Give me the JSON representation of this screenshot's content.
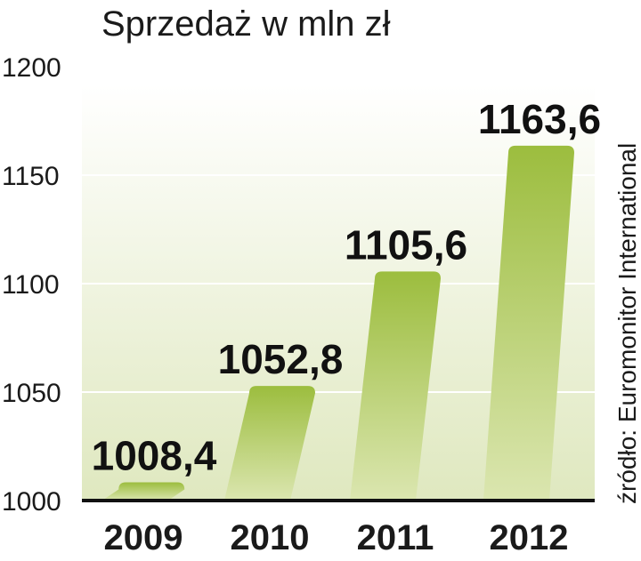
{
  "chart_data": {
    "type": "bar",
    "title": "Sprzedaż w mln zł",
    "source": "źródło: Euromonitor International",
    "categories": [
      "2009",
      "2010",
      "2011",
      "2012"
    ],
    "values": [
      1008.4,
      1052.8,
      1105.6,
      1163.6
    ],
    "value_labels": [
      "1008,4",
      "1052,8",
      "1105,6",
      "1163,6"
    ],
    "yticks": [
      "1000",
      "1050",
      "1100",
      "1150",
      "1200"
    ],
    "ylim": [
      1000,
      1200
    ],
    "grid": true,
    "colors": {
      "bar_top": "#9cbd3e",
      "bar_bottom": "#dbe6b0",
      "bg_top": "#ffffff",
      "bg_bottom": "#dfe8bf"
    }
  }
}
